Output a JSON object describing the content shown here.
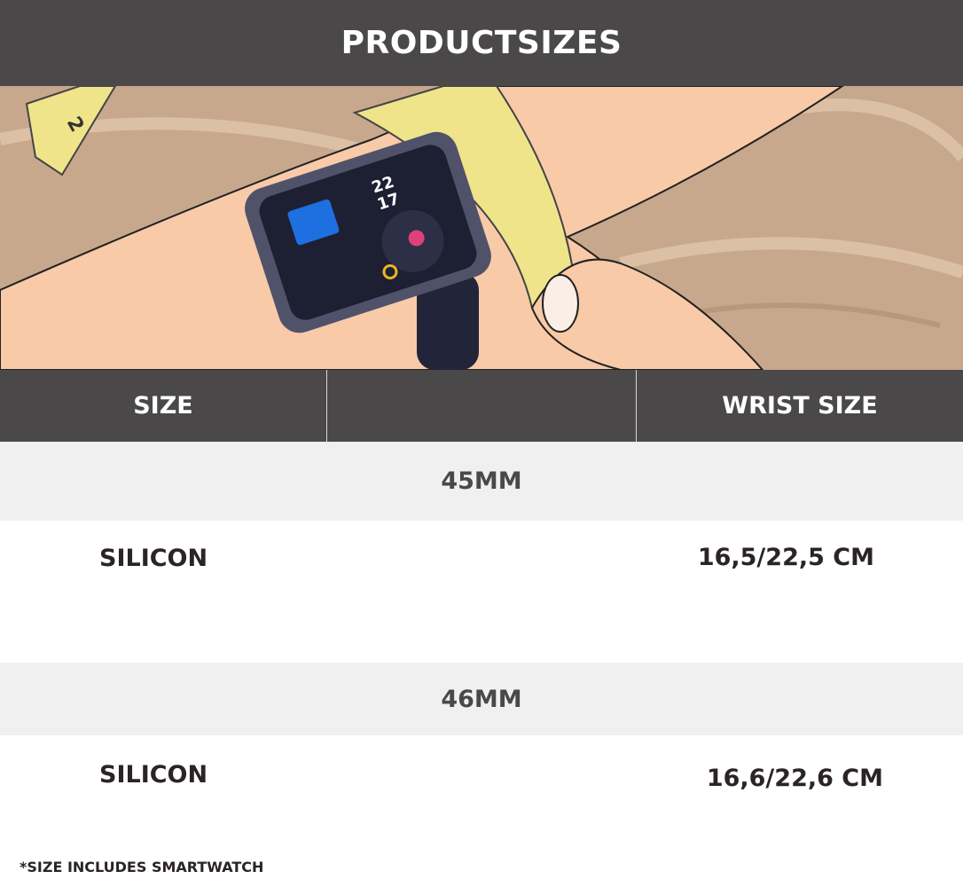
{
  "title": "PRODUCTSIZES",
  "table": {
    "headers": [
      "SIZE",
      "",
      "WRIST SIZE"
    ],
    "groups": [
      {
        "label": "45MM",
        "rows": [
          {
            "material": "SILICON",
            "wrist": "16,5/22,5 CM"
          }
        ]
      },
      {
        "label": "46MM",
        "rows": [
          {
            "material": "SILICON",
            "wrist": "16,6/22,6 CM"
          }
        ]
      }
    ]
  },
  "hero": {
    "watch_time_hour": "22",
    "watch_time_minute": "17",
    "tape_number": "2"
  },
  "footnote": "*SIZE INCLUDES SMARTWATCH",
  "colors": {
    "header_bg": "#4a4848",
    "group_bg": "#f0f0f0",
    "text": "#2b2424"
  }
}
